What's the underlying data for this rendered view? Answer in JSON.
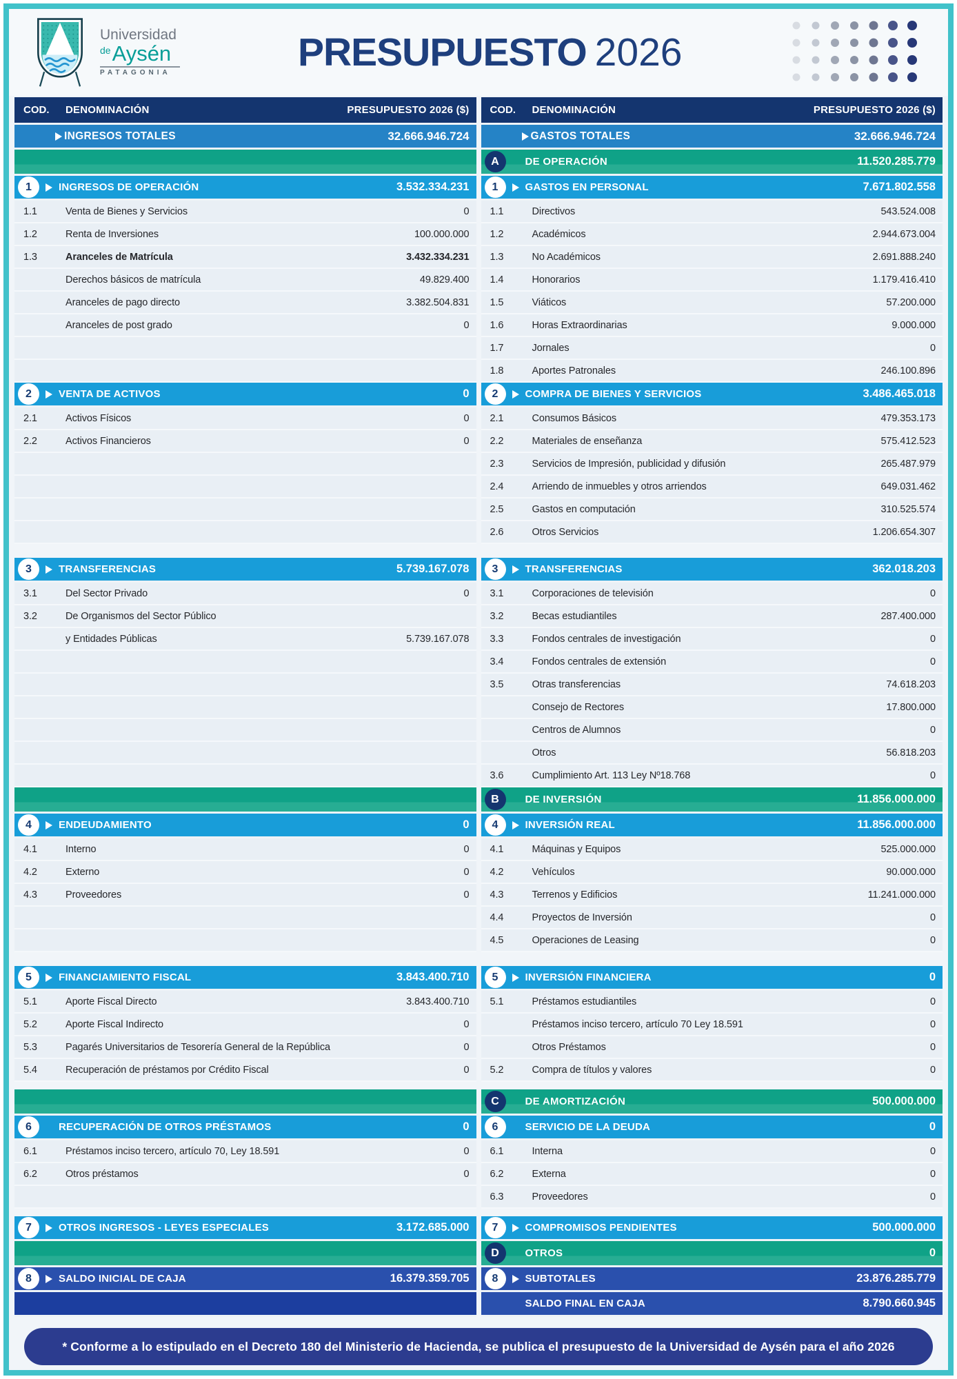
{
  "palette": {
    "frame_teal": "#41c2ca",
    "navy": "#14356f",
    "blue_totals": "#2583c6",
    "cyan_section": "#189dd9",
    "green_category": "#0fa287",
    "royal_blue": "#2a50ad",
    "footer_indigo": "#2c3c8f"
  },
  "header": {
    "logo": {
      "line1": "Universidad",
      "line2_de": "de",
      "line2_name": "Aysén",
      "line3": "PATAGONIA"
    },
    "title_word": "PRESUPUESTO",
    "title_year": "2026",
    "dots": {
      "rows": 4,
      "cols": 7,
      "colors": [
        "#d8dce2",
        "#c2c8d2",
        "#a0a7b5",
        "#8b93a5",
        "#6e7691",
        "#485489",
        "#273877"
      ],
      "radii": [
        5.5,
        5.5,
        6,
        6,
        6.5,
        7,
        7
      ]
    }
  },
  "footer": {
    "note": "* Conforme a lo estipulado en el Decreto 180 del Ministerio de Hacienda, se publica el presupuesto de la Universidad de Aysén para el año 2026"
  },
  "columns": {
    "left": {
      "rows": [
        {
          "t": "colhead",
          "cod": "COD.",
          "den": "DENOMINACIÓN",
          "pres": "PRESUPUESTO 2026 ($)"
        },
        {
          "t": "total",
          "arrow": true,
          "l": "INGRESOS TOTALES",
          "v": "32.666.946.724"
        },
        {
          "t": "greenbar"
        },
        {
          "t": "section",
          "badge": "1",
          "arrow": true,
          "l": "INGRESOS DE OPERACIÓN",
          "v": "3.532.334.231"
        },
        {
          "t": "detail",
          "c": "1.1",
          "l": "Venta de Bienes y Servicios",
          "v": "0"
        },
        {
          "t": "detail",
          "c": "1.2",
          "l": "Renta de Inversiones",
          "v": "100.000.000"
        },
        {
          "t": "detail",
          "c": "1.3",
          "l": "Aranceles de Matrícula",
          "v": "3.432.334.231",
          "bold": true
        },
        {
          "t": "detail",
          "c": "",
          "l": "Derechos básicos de matrícula",
          "v": "49.829.400"
        },
        {
          "t": "detail",
          "c": "",
          "l": "Aranceles de pago directo",
          "v": "3.382.504.831"
        },
        {
          "t": "detail",
          "c": "",
          "l": "Aranceles de post grado",
          "v": "0"
        },
        {
          "t": "blank"
        },
        {
          "t": "blank"
        },
        {
          "t": "section",
          "badge": "2",
          "arrow": true,
          "l": "VENTA DE ACTIVOS",
          "v": "0"
        },
        {
          "t": "detail",
          "c": "2.1",
          "l": "Activos Físicos",
          "v": "0"
        },
        {
          "t": "detail",
          "c": "2.2",
          "l": "Activos Financieros",
          "v": "0"
        },
        {
          "t": "blank"
        },
        {
          "t": "blank"
        },
        {
          "t": "blank"
        },
        {
          "t": "blank"
        },
        {
          "t": "gap"
        },
        {
          "t": "section",
          "badge": "3",
          "arrow": true,
          "l": "TRANSFERENCIAS",
          "v": "5.739.167.078"
        },
        {
          "t": "detail",
          "c": "3.1",
          "l": "Del Sector Privado",
          "v": "0"
        },
        {
          "t": "detail",
          "c": "3.2",
          "l": "De Organismos del Sector Público",
          "v": ""
        },
        {
          "t": "detail",
          "c": "",
          "l": "y Entidades Públicas",
          "v": "5.739.167.078"
        },
        {
          "t": "blank"
        },
        {
          "t": "blank"
        },
        {
          "t": "blank"
        },
        {
          "t": "blank"
        },
        {
          "t": "blank"
        },
        {
          "t": "blank"
        },
        {
          "t": "greenbar"
        },
        {
          "t": "section",
          "badge": "4",
          "arrow": true,
          "l": "ENDEUDAMIENTO",
          "v": "0"
        },
        {
          "t": "detail",
          "c": "4.1",
          "l": "Interno",
          "v": "0"
        },
        {
          "t": "detail",
          "c": "4.2",
          "l": "Externo",
          "v": "0"
        },
        {
          "t": "detail",
          "c": "4.3",
          "l": "Proveedores",
          "v": "0"
        },
        {
          "t": "blank"
        },
        {
          "t": "blank"
        },
        {
          "t": "gap"
        },
        {
          "t": "section",
          "badge": "5",
          "arrow": true,
          "l": "FINANCIAMIENTO FISCAL",
          "v": "3.843.400.710"
        },
        {
          "t": "detail",
          "c": "5.1",
          "l": "Aporte Fiscal Directo",
          "v": "3.843.400.710"
        },
        {
          "t": "detail",
          "c": "5.2",
          "l": "Aporte Fiscal Indirecto",
          "v": "0"
        },
        {
          "t": "detail",
          "c": "5.3",
          "l": "Pagarés Universitarios de Tesorería General de la República",
          "v": "0"
        },
        {
          "t": "detail",
          "c": "5.4",
          "l": "Recuperación de préstamos por Crédito Fiscal",
          "v": "0"
        },
        {
          "t": "gapsm"
        },
        {
          "t": "greenbar"
        },
        {
          "t": "section",
          "badge": "6",
          "arrow": false,
          "l": "RECUPERACIÓN DE OTROS PRÉSTAMOS",
          "v": "0"
        },
        {
          "t": "detail",
          "c": "6.1",
          "l": "Préstamos inciso tercero, artículo 70, Ley 18.591",
          "v": "0"
        },
        {
          "t": "detail",
          "c": "6.2",
          "l": "Otros préstamos",
          "v": "0"
        },
        {
          "t": "blank"
        },
        {
          "t": "gapsm"
        },
        {
          "t": "section",
          "badge": "7",
          "arrow": true,
          "l": "OTROS INGRESOS - LEYES ESPECIALES",
          "v": "3.172.685.000"
        },
        {
          "t": "greenbar"
        },
        {
          "t": "section",
          "badge": "8",
          "arrow": true,
          "l": "SALDO INICIAL DE CAJA",
          "v": "16.379.359.705",
          "variant": "royal"
        },
        {
          "t": "endbar"
        }
      ]
    },
    "right": {
      "rows": [
        {
          "t": "colhead",
          "cod": "COD.",
          "den": "DENOMINACIÓN",
          "pres": "PRESUPUESTO 2026 ($)"
        },
        {
          "t": "total",
          "arrow": true,
          "l": "GASTOS TOTALES",
          "v": "32.666.946.724"
        },
        {
          "t": "letter",
          "badge": "A",
          "l": "DE OPERACIÓN",
          "v": "11.520.285.779"
        },
        {
          "t": "section",
          "badge": "1",
          "arrow": true,
          "l": "GASTOS EN PERSONAL",
          "v": "7.671.802.558"
        },
        {
          "t": "detail",
          "c": "1.1",
          "l": "Directivos",
          "v": "543.524.008"
        },
        {
          "t": "detail",
          "c": "1.2",
          "l": "Académicos",
          "v": "2.944.673.004"
        },
        {
          "t": "detail",
          "c": "1.3",
          "l": "No Académicos",
          "v": "2.691.888.240"
        },
        {
          "t": "detail",
          "c": "1.4",
          "l": "Honorarios",
          "v": "1.179.416.410"
        },
        {
          "t": "detail",
          "c": "1.5",
          "l": "Viáticos",
          "v": "57.200.000"
        },
        {
          "t": "detail",
          "c": "1.6",
          "l": "Horas Extraordinarias",
          "v": "9.000.000"
        },
        {
          "t": "detail",
          "c": "1.7",
          "l": "Jornales",
          "v": "0"
        },
        {
          "t": "detail",
          "c": "1.8",
          "l": "Aportes Patronales",
          "v": "246.100.896"
        },
        {
          "t": "section",
          "badge": "2",
          "arrow": true,
          "l": "COMPRA DE BIENES Y SERVICIOS",
          "v": "3.486.465.018"
        },
        {
          "t": "detail",
          "c": "2.1",
          "l": "Consumos Básicos",
          "v": "479.353.173"
        },
        {
          "t": "detail",
          "c": "2.2",
          "l": "Materiales de enseñanza",
          "v": "575.412.523"
        },
        {
          "t": "detail",
          "c": "2.3",
          "l": "Servicios de Impresión, publicidad y difusión",
          "v": "265.487.979"
        },
        {
          "t": "detail",
          "c": "2.4",
          "l": "Arriendo de inmuebles y otros arriendos",
          "v": "649.031.462"
        },
        {
          "t": "detail",
          "c": "2.5",
          "l": "Gastos en computación",
          "v": "310.525.574"
        },
        {
          "t": "detail",
          "c": "2.6",
          "l": "Otros Servicios",
          "v": "1.206.654.307"
        },
        {
          "t": "gap"
        },
        {
          "t": "section",
          "badge": "3",
          "arrow": true,
          "l": "TRANSFERENCIAS",
          "v": "362.018.203"
        },
        {
          "t": "detail",
          "c": "3.1",
          "l": "Corporaciones de televisión",
          "v": "0"
        },
        {
          "t": "detail",
          "c": "3.2",
          "l": "Becas estudiantiles",
          "v": "287.400.000"
        },
        {
          "t": "detail",
          "c": "3.3",
          "l": "Fondos centrales de investigación",
          "v": "0"
        },
        {
          "t": "detail",
          "c": "3.4",
          "l": "Fondos centrales de extensión",
          "v": "0"
        },
        {
          "t": "detail",
          "c": "3.5",
          "l": "Otras transferencias",
          "v": "74.618.203"
        },
        {
          "t": "detail",
          "c": "",
          "l": "Consejo de Rectores",
          "v": "17.800.000"
        },
        {
          "t": "detail",
          "c": "",
          "l": "Centros de Alumnos",
          "v": "0"
        },
        {
          "t": "detail",
          "c": "",
          "l": "Otros",
          "v": "56.818.203"
        },
        {
          "t": "detail",
          "c": "3.6",
          "l": "Cumplimiento Art. 113 Ley Nº18.768",
          "v": "0"
        },
        {
          "t": "letter",
          "badge": "B",
          "l": "DE INVERSIÓN",
          "v": "11.856.000.000"
        },
        {
          "t": "section",
          "badge": "4",
          "arrow": true,
          "l": "INVERSIÓN REAL",
          "v": "11.856.000.000"
        },
        {
          "t": "detail",
          "c": "4.1",
          "l": "Máquinas y Equipos",
          "v": "525.000.000"
        },
        {
          "t": "detail",
          "c": "4.2",
          "l": "Vehículos",
          "v": "90.000.000"
        },
        {
          "t": "detail",
          "c": "4.3",
          "l": "Terrenos y Edificios",
          "v": "11.241.000.000"
        },
        {
          "t": "detail",
          "c": "4.4",
          "l": "Proyectos de Inversión",
          "v": "0"
        },
        {
          "t": "detail",
          "c": "4.5",
          "l": "Operaciones de Leasing",
          "v": "0"
        },
        {
          "t": "gap"
        },
        {
          "t": "section",
          "badge": "5",
          "arrow": true,
          "l": "INVERSIÓN FINANCIERA",
          "v": "0"
        },
        {
          "t": "detail",
          "c": "5.1",
          "l": "Préstamos estudiantiles",
          "v": "0"
        },
        {
          "t": "detail",
          "c": "",
          "l": "Préstamos inciso tercero, artículo 70 Ley 18.591",
          "v": "0"
        },
        {
          "t": "detail",
          "c": "",
          "l": "Otros Préstamos",
          "v": "0"
        },
        {
          "t": "detail",
          "c": "5.2",
          "l": "Compra de títulos y valores",
          "v": "0"
        },
        {
          "t": "gapsm"
        },
        {
          "t": "letter",
          "badge": "C",
          "l": "DE AMORTIZACIÓN",
          "v": "500.000.000"
        },
        {
          "t": "section",
          "badge": "6",
          "arrow": false,
          "l": "SERVICIO DE LA DEUDA",
          "v": "0"
        },
        {
          "t": "detail",
          "c": "6.1",
          "l": "Interna",
          "v": "0"
        },
        {
          "t": "detail",
          "c": "6.2",
          "l": "Externa",
          "v": "0"
        },
        {
          "t": "detail",
          "c": "6.3",
          "l": "Proveedores",
          "v": "0"
        },
        {
          "t": "gapsm"
        },
        {
          "t": "section",
          "badge": "7",
          "arrow": true,
          "l": "COMPROMISOS PENDIENTES",
          "v": "500.000.000"
        },
        {
          "t": "letter",
          "badge": "D",
          "l": "OTROS",
          "v": "0"
        },
        {
          "t": "section",
          "badge": "8",
          "arrow": true,
          "l": "SUBTOTALES",
          "v": "23.876.285.779",
          "variant": "royal"
        },
        {
          "t": "finalrow",
          "l": "SALDO FINAL EN CAJA",
          "v": "8.790.660.945"
        }
      ]
    }
  }
}
